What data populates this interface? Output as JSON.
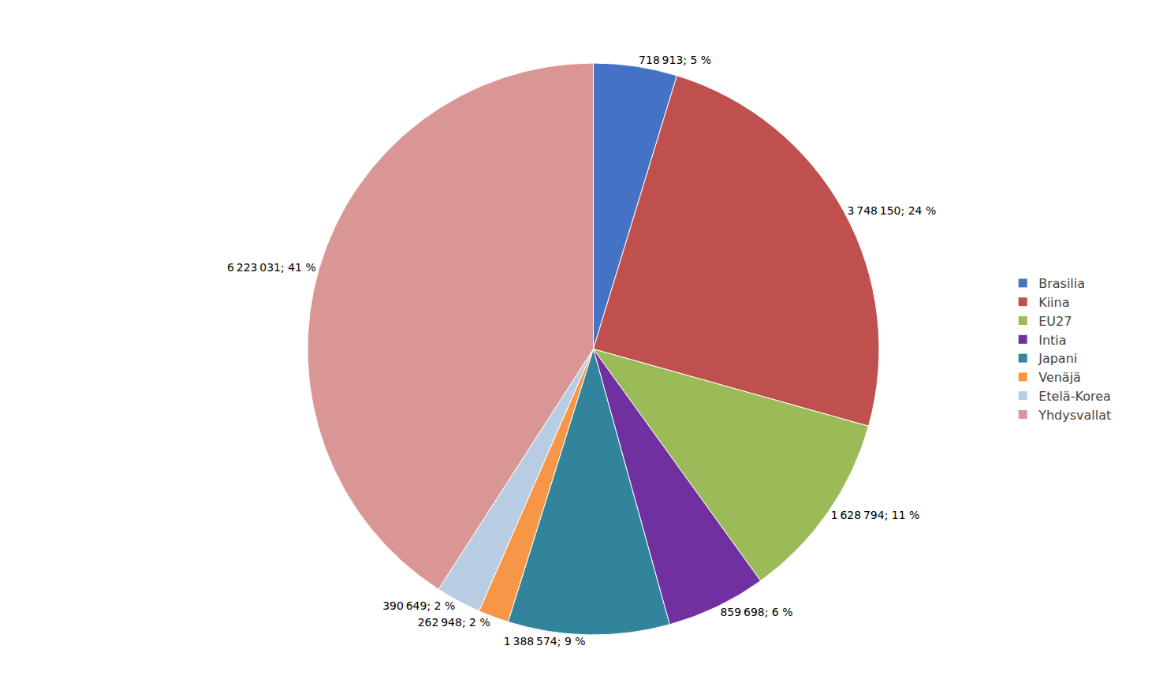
{
  "chart_data": {
    "type": "pie",
    "categories": [
      "Brasilia",
      "Kiina",
      "EU27",
      "Intia",
      "Japani",
      "Venäjä",
      "Etelä-Korea",
      "Yhdysvallat"
    ],
    "values": [
      718913,
      3748150,
      1628794,
      859698,
      1388574,
      262948,
      390649,
      6223031
    ],
    "value_labels": [
      "718 913; 5 %",
      "3 748 150; 24 %",
      "1 628 794; 11 %",
      "859 698; 6 %",
      "1 388 574; 9 %",
      "262 948; 2 %",
      "390 649; 2 %",
      "6 223 031; 41 %"
    ],
    "colors": [
      "#4472C4",
      "#C0504D",
      "#9BBB59",
      "#7030A0",
      "#31849B",
      "#F79646",
      "#B8CCE4",
      "#D99694"
    ],
    "data_labels": true,
    "legend": "right"
  }
}
